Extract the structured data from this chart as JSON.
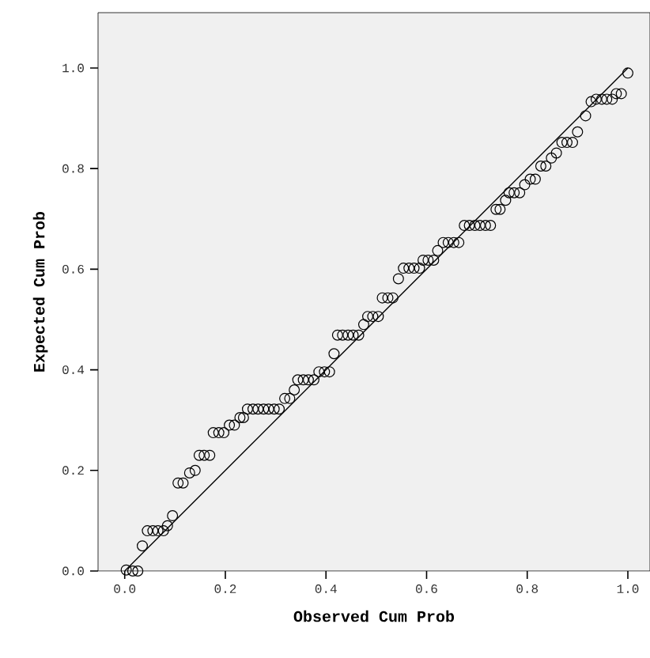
{
  "chart_data": {
    "type": "scatter",
    "xlabel": "Observed Cum Prob",
    "ylabel": "Expected Cum Prob",
    "xlim": [
      -0.053,
      1.044
    ],
    "ylim": [
      0,
      1.11
    ],
    "xticks": [
      {
        "value": 0,
        "label": "0.0"
      },
      {
        "value": 0.2,
        "label": "0.2"
      },
      {
        "value": 0.4,
        "label": "0.4"
      },
      {
        "value": 0.6,
        "label": "0.6"
      },
      {
        "value": 0.8,
        "label": "0.8"
      },
      {
        "value": 1,
        "label": "1.0"
      }
    ],
    "yticks": [
      {
        "value": 0,
        "label": "0.0"
      },
      {
        "value": 0.2,
        "label": "0.2"
      },
      {
        "value": 0.4,
        "label": "0.4"
      },
      {
        "value": 0.6,
        "label": "0.6"
      },
      {
        "value": 0.8,
        "label": "0.8"
      },
      {
        "value": 1,
        "label": "1.0"
      }
    ],
    "grid": false,
    "series": [
      {
        "color": "#000000",
        "marker": "circle",
        "x": [
          0.003,
          0.016,
          0.026,
          0.035,
          0.045,
          0.056,
          0.066,
          0.077,
          0.085,
          0.095,
          0.106,
          0.116,
          0.129,
          0.14,
          0.148,
          0.158,
          0.169,
          0.176,
          0.187,
          0.197,
          0.208,
          0.218,
          0.229,
          0.236,
          0.244,
          0.255,
          0.265,
          0.276,
          0.286,
          0.297,
          0.307,
          0.318,
          0.328,
          0.337,
          0.344,
          0.355,
          0.365,
          0.376,
          0.386,
          0.397,
          0.407,
          0.416,
          0.423,
          0.433,
          0.444,
          0.454,
          0.465,
          0.475,
          0.483,
          0.493,
          0.504,
          0.512,
          0.523,
          0.533,
          0.544,
          0.554,
          0.565,
          0.575,
          0.586,
          0.593,
          0.603,
          0.614,
          0.622,
          0.633,
          0.643,
          0.654,
          0.664,
          0.675,
          0.685,
          0.696,
          0.706,
          0.717,
          0.727,
          0.738,
          0.746,
          0.757,
          0.764,
          0.774,
          0.785,
          0.795,
          0.806,
          0.816,
          0.827,
          0.837,
          0.848,
          0.858,
          0.869,
          0.879,
          0.89,
          0.9,
          0.916,
          0.927,
          0.937,
          0.948,
          0.958,
          0.969,
          0.977,
          0.987,
          1.0
        ],
        "values": [
          0.002,
          0,
          0,
          0.05,
          0.08,
          0.08,
          0.08,
          0.08,
          0.09,
          0.11,
          0.175,
          0.175,
          0.195,
          0.2,
          0.23,
          0.23,
          0.23,
          0.275,
          0.275,
          0.275,
          0.29,
          0.29,
          0.305,
          0.305,
          0.322,
          0.322,
          0.322,
          0.322,
          0.322,
          0.322,
          0.322,
          0.343,
          0.343,
          0.36,
          0.38,
          0.38,
          0.38,
          0.38,
          0.396,
          0.396,
          0.396,
          0.432,
          0.469,
          0.469,
          0.469,
          0.469,
          0.469,
          0.49,
          0.506,
          0.506,
          0.506,
          0.543,
          0.543,
          0.543,
          0.581,
          0.602,
          0.602,
          0.602,
          0.602,
          0.618,
          0.618,
          0.618,
          0.637,
          0.653,
          0.653,
          0.653,
          0.653,
          0.687,
          0.687,
          0.687,
          0.687,
          0.687,
          0.687,
          0.719,
          0.719,
          0.737,
          0.752,
          0.752,
          0.752,
          0.768,
          0.779,
          0.779,
          0.805,
          0.805,
          0.821,
          0.831,
          0.852,
          0.852,
          0.852,
          0.873,
          0.905,
          0.933,
          0.938,
          0.938,
          0.938,
          0.938,
          0.949,
          0.949,
          0.99
        ]
      },
      {
        "type": "line",
        "color": "#000000",
        "x": [
          0,
          1
        ],
        "values": [
          0,
          1
        ]
      }
    ]
  }
}
